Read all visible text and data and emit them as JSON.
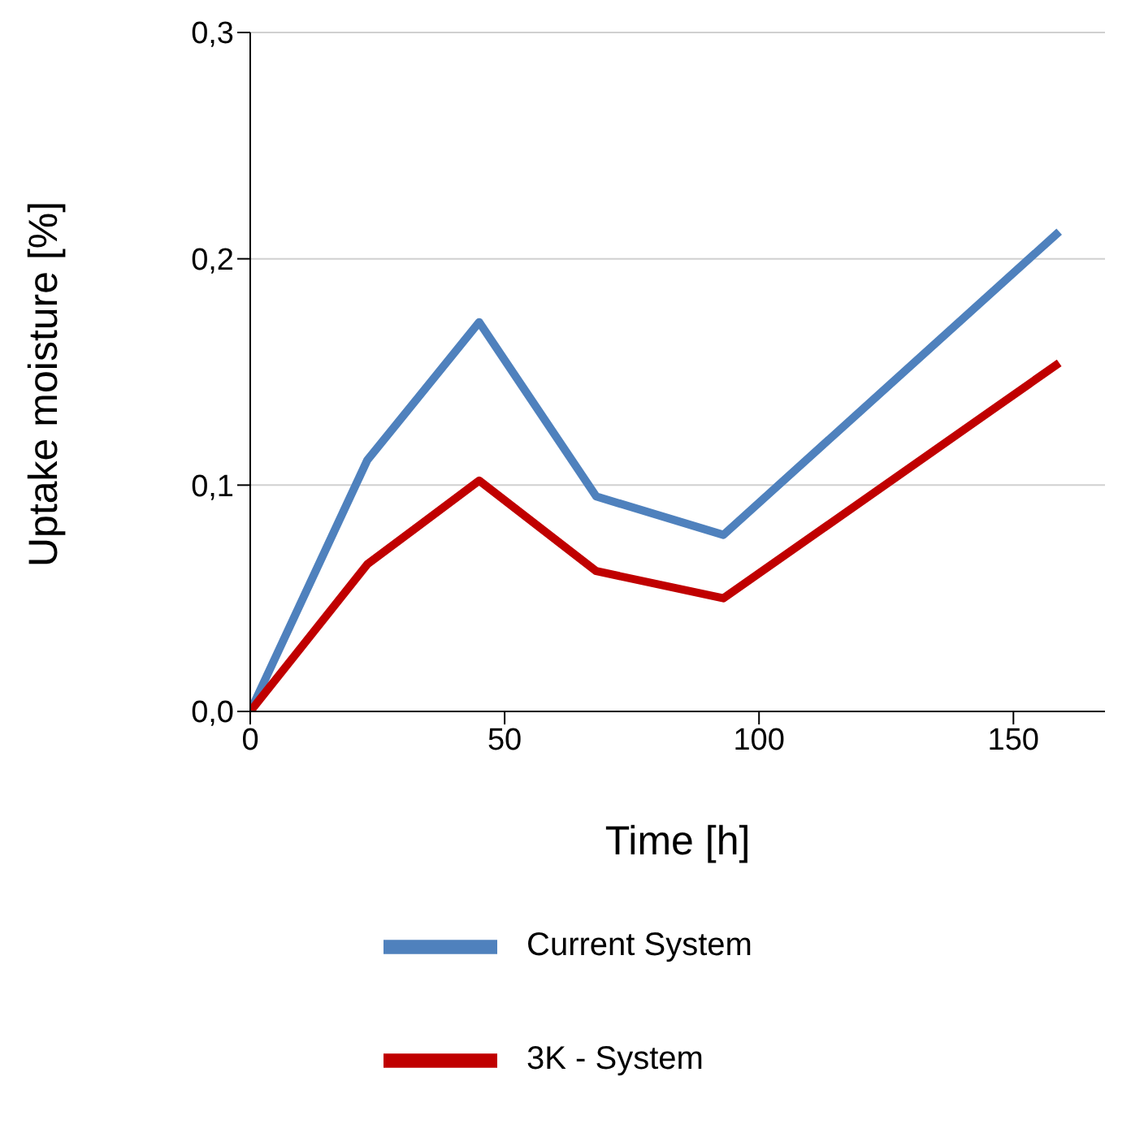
{
  "chart_data": {
    "type": "line",
    "xlabel": "Time [h]",
    "ylabel": "Uptake moisture  [%]",
    "x": [
      0,
      23,
      45,
      68,
      93,
      159
    ],
    "series": [
      {
        "name": "Current System",
        "color": "#4f81bd",
        "values": [
          0,
          0.111,
          0.172,
          0.095,
          0.078,
          0.212
        ]
      },
      {
        "name": "3K - System",
        "color": "#c00000",
        "values": [
          0,
          0.065,
          0.102,
          0.062,
          0.05,
          0.154
        ]
      }
    ],
    "xlim": [
      0,
      168
    ],
    "xticks": [
      0,
      50,
      100,
      150
    ],
    "ylim": [
      0,
      0.3
    ],
    "yticks": [
      {
        "value": 0,
        "label": "0,0"
      },
      {
        "value": 0.1,
        "label": "0,1"
      },
      {
        "value": 0.2,
        "label": "0,2"
      },
      {
        "value": 0.3,
        "label": "0,3"
      }
    ],
    "grid": "y",
    "legend": "bottom",
    "marker": "none",
    "line_style": "solid"
  }
}
